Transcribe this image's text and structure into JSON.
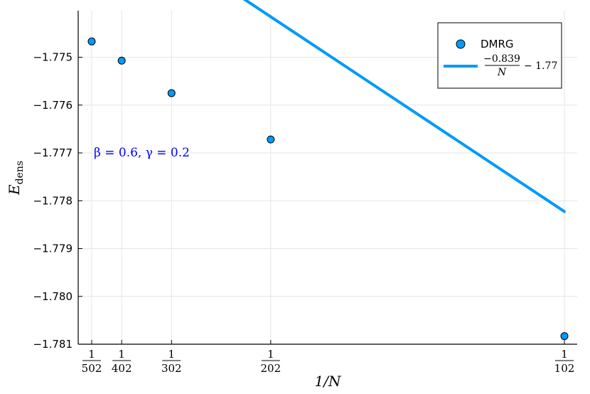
{
  "chart_data": {
    "type": "scatter",
    "xlabel": "1/N",
    "ylabel_main": "E",
    "ylabel_sub": "dens",
    "N_values": [
      502,
      402,
      302,
      202,
      102
    ],
    "x_tick_numerators": [
      "1",
      "1",
      "1",
      "1",
      "1"
    ],
    "x_tick_denominators": [
      "502",
      "402",
      "302",
      "202",
      "102"
    ],
    "y_ticks": [
      -1.781,
      -1.78,
      -1.779,
      -1.778,
      -1.777,
      -1.776,
      -1.775
    ],
    "y_tick_labels": [
      "−1.781",
      "−1.780",
      "−1.779",
      "−1.778",
      "−1.777",
      "−1.776",
      "−1.775"
    ],
    "series": [
      {
        "name": "DMRG",
        "kind": "scatter",
        "color": "#009af9",
        "x": [
          0.001992,
          0.0024876,
          0.0033113,
          0.0049505,
          0.0098039
        ],
        "y": [
          -1.77467,
          -1.77507,
          -1.77575,
          -1.77672,
          -1.78083
        ]
      },
      {
        "name": "fit",
        "kind": "line",
        "color": "#009af9",
        "slope": -0.839,
        "intercept": -1.77
      }
    ],
    "legend": {
      "position": "top-right",
      "scatter_label": "DMRG",
      "fit_numerator": "−0.839",
      "fit_denominator": "N",
      "fit_suffix": "− 1.77"
    },
    "annotation": {
      "beta_label": "β = 0.6, γ = 0.2"
    },
    "grid": true
  }
}
